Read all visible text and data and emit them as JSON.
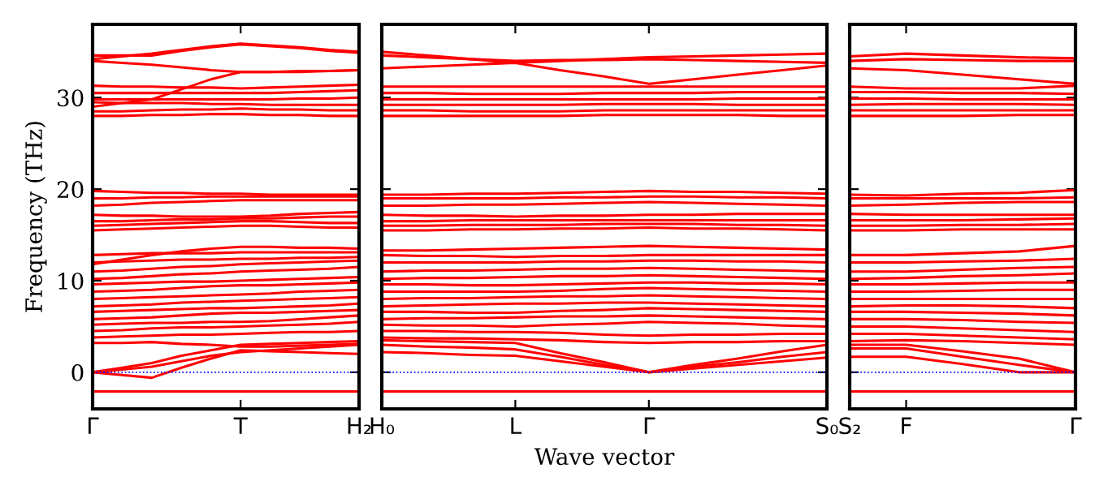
{
  "chart_data": [
    {
      "type": "line",
      "ylabel": "Frequency (THz)",
      "categories": [
        "Γ",
        null,
        null,
        null,
        null,
        "T",
        null,
        null,
        null,
        "H₂"
      ],
      "ylim": [
        -4,
        38
      ],
      "yticks": [
        0,
        10,
        20,
        30
      ],
      "ref_lines": [
        {
          "axis": "y",
          "value": 0,
          "label": null,
          "color": "#0000ff",
          "line_style": "dotted"
        }
      ],
      "grid": false,
      "legend": false,
      "marker": "none",
      "line_style": "solid",
      "series": [
        {
          "color": "#ff0000",
          "values": [
            -2.1,
            -2.1,
            -2.1,
            -2.1,
            -2.1,
            -2.1,
            -2.1,
            -2.1,
            -2.1,
            -2.1
          ]
        },
        {
          "color": "#ff0000",
          "values": [
            0,
            -0.3,
            -0.6,
            0.5,
            1.5,
            2.4,
            2.3,
            2.2,
            2.1,
            2.0
          ]
        },
        {
          "color": "#ff0000",
          "values": [
            0,
            0.3,
            0.6,
            1.2,
            1.8,
            2.2,
            2.4,
            2.6,
            2.8,
            3.0
          ]
        },
        {
          "color": "#ff0000",
          "values": [
            0,
            0.5,
            1.0,
            1.8,
            2.4,
            3.0,
            3.1,
            3.2,
            3.3,
            3.4
          ]
        },
        {
          "color": "#ff0000",
          "values": [
            3.2,
            3.2,
            3.3,
            3.1,
            3.0,
            2.8,
            2.8,
            2.9,
            3.0,
            3.1
          ]
        },
        {
          "color": "#ff0000",
          "values": [
            3.8,
            3.9,
            4.0,
            4.1,
            4.1,
            4.2,
            4.3,
            4.4,
            4.4,
            4.5
          ]
        },
        {
          "color": "#ff0000",
          "values": [
            4.5,
            4.6,
            4.8,
            4.9,
            4.9,
            5.0,
            5.1,
            5.2,
            5.3,
            5.5
          ]
        },
        {
          "color": "#ff0000",
          "values": [
            5.2,
            5.3,
            5.4,
            5.4,
            5.5,
            5.5,
            5.6,
            5.8,
            6.0,
            6.2
          ]
        },
        {
          "color": "#ff0000",
          "values": [
            5.8,
            5.9,
            6.0,
            6.2,
            6.4,
            6.5,
            6.5,
            6.6,
            6.7,
            6.8
          ]
        },
        {
          "color": "#ff0000",
          "values": [
            6.6,
            6.7,
            6.8,
            6.9,
            7.0,
            7.0,
            7.1,
            7.2,
            7.3,
            7.5
          ]
        },
        {
          "color": "#ff0000",
          "values": [
            7.2,
            7.3,
            7.4,
            7.6,
            7.7,
            7.8,
            7.9,
            8.0,
            8.1,
            8.2
          ]
        },
        {
          "color": "#ff0000",
          "values": [
            8.0,
            8.1,
            8.2,
            8.3,
            8.4,
            8.5,
            8.6,
            8.8,
            8.9,
            9.0
          ]
        },
        {
          "color": "#ff0000",
          "values": [
            8.8,
            8.9,
            9.0,
            9.2,
            9.4,
            9.5,
            9.5,
            9.6,
            9.7,
            9.8
          ]
        },
        {
          "color": "#ff0000",
          "values": [
            9.6,
            9.7,
            9.8,
            9.9,
            9.9,
            10.0,
            10.1,
            10.2,
            10.3,
            10.4
          ]
        },
        {
          "color": "#ff0000",
          "values": [
            10.2,
            10.3,
            10.5,
            10.7,
            10.8,
            11.0,
            11.1,
            11.2,
            11.3,
            11.5
          ]
        },
        {
          "color": "#ff0000",
          "values": [
            11.0,
            11.1,
            11.3,
            11.5,
            11.6,
            11.8,
            11.9,
            12.0,
            12.1,
            12.2
          ]
        },
        {
          "color": "#ff0000",
          "values": [
            12.0,
            12.1,
            12.2,
            12.3,
            12.3,
            12.4,
            12.4,
            12.5,
            12.5,
            12.6
          ]
        },
        {
          "color": "#ff0000",
          "values": [
            12.8,
            12.9,
            13.0,
            13.0,
            13.0,
            13.1,
            13.1,
            13.1,
            13.1,
            13.1
          ]
        },
        {
          "color": "#ff0000",
          "values": [
            11.8,
            12.3,
            12.8,
            13.2,
            13.5,
            13.7,
            13.7,
            13.6,
            13.6,
            13.5
          ]
        },
        {
          "color": "#ff0000",
          "values": [
            15.5,
            15.6,
            15.7,
            15.8,
            15.9,
            16.0,
            16.0,
            15.9,
            15.8,
            15.8
          ]
        },
        {
          "color": "#ff0000",
          "values": [
            16.0,
            16.1,
            16.2,
            16.3,
            16.4,
            16.5,
            16.5,
            16.4,
            16.3,
            16.3
          ]
        },
        {
          "color": "#ff0000",
          "values": [
            16.5,
            16.5,
            16.6,
            16.7,
            16.7,
            16.8,
            16.8,
            16.9,
            17.0,
            17.0
          ]
        },
        {
          "color": "#ff0000",
          "values": [
            17.2,
            17.1,
            17.1,
            17.0,
            17.0,
            17.0,
            17.1,
            17.3,
            17.4,
            17.5
          ]
        },
        {
          "color": "#ff0000",
          "values": [
            18.2,
            18.3,
            18.5,
            18.6,
            18.7,
            18.8,
            18.8,
            18.8,
            18.8,
            18.8
          ]
        },
        {
          "color": "#ff0000",
          "values": [
            19.0,
            19.0,
            19.1,
            19.1,
            19.2,
            19.2,
            19.2,
            19.2,
            19.2,
            19.2
          ]
        },
        {
          "color": "#ff0000",
          "values": [
            19.8,
            19.7,
            19.6,
            19.6,
            19.5,
            19.5,
            19.4,
            19.4,
            19.4,
            19.4
          ]
        },
        {
          "color": "#ff0000",
          "values": [
            28.0,
            28.0,
            28.1,
            28.1,
            28.2,
            28.2,
            28.1,
            28.1,
            28.0,
            28.0
          ]
        },
        {
          "color": "#ff0000",
          "values": [
            28.5,
            28.5,
            28.6,
            28.7,
            28.7,
            28.8,
            28.7,
            28.7,
            28.6,
            28.6
          ]
        },
        {
          "color": "#ff0000",
          "values": [
            29.5,
            29.4,
            29.4,
            29.4,
            29.3,
            29.3,
            29.2,
            29.2,
            29.2,
            29.2
          ]
        },
        {
          "color": "#ff0000",
          "values": [
            29.8,
            29.8,
            29.8,
            29.8,
            29.8,
            29.8,
            29.8,
            29.9,
            29.9,
            30.0
          ]
        },
        {
          "color": "#ff0000",
          "values": [
            30.5,
            30.5,
            30.5,
            30.5,
            30.5,
            30.5,
            30.5,
            30.6,
            30.7,
            30.8
          ]
        },
        {
          "color": "#ff0000",
          "values": [
            31.3,
            31.2,
            31.2,
            31.1,
            31.1,
            31.0,
            31.1,
            31.2,
            31.3,
            31.4
          ]
        },
        {
          "color": "#ff0000",
          "values": [
            29.0,
            29.4,
            29.8,
            30.9,
            32.0,
            32.8,
            32.8,
            32.8,
            32.9,
            33.0
          ]
        },
        {
          "color": "#ff0000",
          "values": [
            34.2,
            34.5,
            34.8,
            35.2,
            35.6,
            35.9,
            35.7,
            35.5,
            35.2,
            35.0
          ]
        },
        {
          "color": "#ff0000",
          "values": [
            34.6,
            34.6,
            34.6,
            35.1,
            35.5,
            35.8,
            35.6,
            35.4,
            35.1,
            34.9
          ]
        },
        {
          "color": "#ff0000",
          "values": [
            34.0,
            33.8,
            33.6,
            33.3,
            33.0,
            32.8,
            32.8,
            32.9,
            32.9,
            33.0
          ]
        }
      ]
    },
    {
      "type": "line",
      "xlabel": "Wave vector",
      "categories": [
        "H₀",
        null,
        null,
        "L",
        null,
        null,
        "Γ",
        null,
        null,
        null,
        "S₀"
      ],
      "ylim": [
        -4,
        38
      ],
      "yticks": [
        0,
        10,
        20,
        30
      ],
      "tick_labels": "x",
      "ref_lines": [
        {
          "axis": "y",
          "value": 0,
          "label": null,
          "color": "#0000ff",
          "line_style": "dotted"
        }
      ],
      "grid": false,
      "legend": false,
      "marker": "none",
      "line_style": "solid",
      "series": [
        {
          "color": "#ff0000",
          "values": [
            -2.1,
            -2.1,
            -2.1,
            -2.1,
            -2.1,
            -2.1,
            -2.1,
            -2.1,
            -2.1,
            -2.1,
            -2.1
          ]
        },
        {
          "color": "#ff0000",
          "values": [
            2.2,
            2.1,
            1.9,
            1.8,
            1.2,
            0.6,
            0,
            0.4,
            0.8,
            1.2,
            1.6
          ]
        },
        {
          "color": "#ff0000",
          "values": [
            3.0,
            2.8,
            2.7,
            2.5,
            1.7,
            0.8,
            0,
            0.6,
            1.1,
            1.7,
            2.2
          ]
        },
        {
          "color": "#ff0000",
          "values": [
            3.5,
            3.4,
            3.3,
            3.2,
            2.1,
            1.1,
            0,
            0.8,
            1.5,
            2.3,
            3.0
          ]
        },
        {
          "color": "#ff0000",
          "values": [
            3.8,
            3.7,
            3.7,
            3.6,
            3.5,
            3.3,
            3.2,
            3.3,
            3.3,
            3.4,
            3.4
          ]
        },
        {
          "color": "#ff0000",
          "values": [
            4.5,
            4.5,
            4.4,
            4.4,
            4.3,
            4.1,
            4.0,
            4.1,
            4.1,
            4.2,
            4.2
          ]
        },
        {
          "color": "#ff0000",
          "values": [
            5.2,
            5.1,
            5.1,
            5.0,
            5.2,
            5.3,
            5.5,
            5.4,
            5.3,
            5.1,
            5.0
          ]
        },
        {
          "color": "#ff0000",
          "values": [
            5.8,
            5.9,
            5.9,
            6.0,
            6.1,
            6.1,
            6.2,
            6.1,
            6.0,
            5.9,
            5.8
          ]
        },
        {
          "color": "#ff0000",
          "values": [
            6.6,
            6.6,
            6.5,
            6.5,
            6.7,
            6.8,
            7.0,
            6.9,
            6.8,
            6.7,
            6.6
          ]
        },
        {
          "color": "#ff0000",
          "values": [
            7.2,
            7.3,
            7.4,
            7.5,
            7.5,
            7.6,
            7.6,
            7.5,
            7.4,
            7.3,
            7.2
          ]
        },
        {
          "color": "#ff0000",
          "values": [
            8.0,
            8.1,
            8.1,
            8.2,
            8.3,
            8.3,
            8.4,
            8.3,
            8.2,
            8.1,
            8.0
          ]
        },
        {
          "color": "#ff0000",
          "values": [
            8.8,
            8.8,
            8.8,
            8.8,
            8.9,
            9.1,
            9.2,
            9.1,
            9.0,
            8.9,
            8.8
          ]
        },
        {
          "color": "#ff0000",
          "values": [
            9.6,
            9.6,
            9.5,
            9.5,
            9.6,
            9.7,
            9.8,
            9.8,
            9.7,
            9.7,
            9.6
          ]
        },
        {
          "color": "#ff0000",
          "values": [
            10.2,
            10.3,
            10.3,
            10.4,
            10.5,
            10.5,
            10.6,
            10.5,
            10.4,
            10.3,
            10.2
          ]
        },
        {
          "color": "#ff0000",
          "values": [
            11.0,
            11.1,
            11.1,
            11.2,
            11.3,
            11.3,
            11.4,
            11.3,
            11.2,
            11.1,
            11.0
          ]
        },
        {
          "color": "#ff0000",
          "values": [
            12.0,
            12.0,
            12.0,
            12.0,
            12.1,
            12.1,
            12.2,
            12.2,
            12.1,
            12.1,
            12.0
          ]
        },
        {
          "color": "#ff0000",
          "values": [
            12.8,
            12.7,
            12.7,
            12.6,
            12.7,
            12.7,
            12.8,
            12.8,
            12.8,
            12.8,
            12.8
          ]
        },
        {
          "color": "#ff0000",
          "values": [
            13.3,
            13.3,
            13.4,
            13.5,
            13.6,
            13.7,
            13.8,
            13.7,
            13.6,
            13.5,
            13.4
          ]
        },
        {
          "color": "#ff0000",
          "values": [
            15.5,
            15.5,
            15.6,
            15.6,
            15.7,
            15.7,
            15.8,
            15.7,
            15.7,
            15.6,
            15.5
          ]
        },
        {
          "color": "#ff0000",
          "values": [
            16.0,
            16.0,
            16.1,
            16.1,
            16.1,
            16.2,
            16.2,
            16.2,
            16.1,
            16.1,
            16.0
          ]
        },
        {
          "color": "#ff0000",
          "values": [
            16.5,
            16.5,
            16.6,
            16.6,
            16.6,
            16.6,
            16.6,
            16.6,
            16.6,
            16.6,
            16.6
          ]
        },
        {
          "color": "#ff0000",
          "values": [
            17.2,
            17.1,
            17.1,
            17.0,
            17.1,
            17.1,
            17.2,
            17.2,
            17.3,
            17.3,
            17.3
          ]
        },
        {
          "color": "#ff0000",
          "values": [
            18.2,
            18.2,
            18.3,
            18.3,
            18.4,
            18.5,
            18.6,
            18.5,
            18.4,
            18.3,
            18.2
          ]
        },
        {
          "color": "#ff0000",
          "values": [
            19.0,
            19.0,
            19.0,
            19.0,
            19.1,
            19.1,
            19.2,
            19.2,
            19.1,
            19.1,
            19.0
          ]
        },
        {
          "color": "#ff0000",
          "values": [
            19.4,
            19.4,
            19.5,
            19.5,
            19.6,
            19.7,
            19.8,
            19.7,
            19.7,
            19.6,
            19.5
          ]
        },
        {
          "color": "#ff0000",
          "values": [
            28.0,
            28.0,
            28.0,
            28.0,
            28.0,
            28.1,
            28.1,
            28.1,
            28.1,
            28.0,
            28.0
          ]
        },
        {
          "color": "#ff0000",
          "values": [
            28.6,
            28.6,
            28.5,
            28.5,
            28.5,
            28.6,
            28.6,
            28.6,
            28.6,
            28.6,
            28.6
          ]
        },
        {
          "color": "#ff0000",
          "values": [
            29.2,
            29.2,
            29.2,
            29.2,
            29.2,
            29.3,
            29.3,
            29.3,
            29.2,
            29.2,
            29.2
          ]
        },
        {
          "color": "#ff0000",
          "values": [
            29.8,
            29.8,
            29.8,
            29.8,
            29.8,
            29.8,
            29.8,
            29.8,
            29.9,
            29.9,
            29.9
          ]
        },
        {
          "color": "#ff0000",
          "values": [
            30.5,
            30.5,
            30.4,
            30.4,
            30.4,
            30.5,
            30.5,
            30.5,
            30.6,
            30.6,
            30.6
          ]
        },
        {
          "color": "#ff0000",
          "values": [
            31.2,
            31.2,
            31.2,
            31.2,
            31.2,
            31.2,
            31.2,
            31.2,
            31.2,
            31.2,
            31.2
          ]
        },
        {
          "color": "#ff0000",
          "values": [
            33.2,
            33.4,
            33.6,
            33.8,
            33.0,
            32.3,
            31.5,
            32.0,
            32.5,
            33.0,
            33.5
          ]
        },
        {
          "color": "#ff0000",
          "values": [
            35.0,
            34.6,
            34.2,
            33.8,
            34.0,
            34.2,
            34.4,
            34.5,
            34.6,
            34.7,
            34.8
          ]
        },
        {
          "color": "#ff0000",
          "values": [
            34.6,
            34.4,
            34.2,
            34.0,
            34.1,
            34.1,
            34.2,
            34.1,
            34.0,
            33.9,
            33.8
          ]
        }
      ]
    },
    {
      "type": "line",
      "categories": [
        "S₂",
        "F",
        null,
        null,
        "Γ"
      ],
      "ylim": [
        -4,
        38
      ],
      "yticks": [
        0,
        10,
        20,
        30
      ],
      "tick_labels": "x",
      "ref_lines": [
        {
          "axis": "y",
          "value": 0,
          "label": null,
          "color": "#0000ff",
          "line_style": "dotted"
        }
      ],
      "grid": false,
      "legend": false,
      "marker": "none",
      "line_style": "solid",
      "series": [
        {
          "color": "#ff0000",
          "values": [
            -2.1,
            -2.1,
            -2.1,
            -2.1,
            -2.1
          ]
        },
        {
          "color": "#ff0000",
          "values": [
            1.7,
            1.7,
            0.9,
            0,
            0
          ]
        },
        {
          "color": "#ff0000",
          "values": [
            2.6,
            2.6,
            1.7,
            0.8,
            0
          ]
        },
        {
          "color": "#ff0000",
          "values": [
            3.0,
            3.0,
            2.3,
            1.5,
            0
          ]
        },
        {
          "color": "#ff0000",
          "values": [
            3.4,
            3.5,
            3.4,
            3.2,
            3.0
          ]
        },
        {
          "color": "#ff0000",
          "values": [
            4.2,
            4.2,
            4.0,
            3.8,
            3.6
          ]
        },
        {
          "color": "#ff0000",
          "values": [
            5.0,
            5.0,
            4.8,
            4.6,
            4.4
          ]
        },
        {
          "color": "#ff0000",
          "values": [
            5.8,
            5.8,
            5.7,
            5.5,
            5.4
          ]
        },
        {
          "color": "#ff0000",
          "values": [
            6.6,
            6.6,
            6.5,
            6.4,
            6.2
          ]
        },
        {
          "color": "#ff0000",
          "values": [
            7.2,
            7.3,
            7.3,
            7.2,
            7.0
          ]
        },
        {
          "color": "#ff0000",
          "values": [
            8.0,
            8.0,
            8.0,
            8.0,
            8.0
          ]
        },
        {
          "color": "#ff0000",
          "values": [
            8.8,
            8.8,
            8.9,
            9.0,
            9.0
          ]
        },
        {
          "color": "#ff0000",
          "values": [
            9.6,
            9.6,
            9.7,
            9.8,
            9.8
          ]
        },
        {
          "color": "#ff0000",
          "values": [
            10.2,
            10.3,
            10.5,
            10.6,
            10.8
          ]
        },
        {
          "color": "#ff0000",
          "values": [
            11.0,
            11.0,
            11.2,
            11.4,
            11.5
          ]
        },
        {
          "color": "#ff0000",
          "values": [
            12.0,
            12.0,
            12.1,
            12.2,
            12.4
          ]
        },
        {
          "color": "#ff0000",
          "values": [
            12.8,
            12.8,
            13.0,
            13.2,
            13.8
          ]
        },
        {
          "color": "#ff0000",
          "values": [
            15.5,
            15.5,
            15.6,
            15.6,
            15.6
          ]
        },
        {
          "color": "#ff0000",
          "values": [
            16.0,
            16.0,
            16.1,
            16.1,
            16.2
          ]
        },
        {
          "color": "#ff0000",
          "values": [
            16.6,
            16.6,
            16.6,
            16.7,
            16.8
          ]
        },
        {
          "color": "#ff0000",
          "values": [
            17.3,
            17.2,
            17.2,
            17.2,
            17.2
          ]
        },
        {
          "color": "#ff0000",
          "values": [
            18.2,
            18.3,
            18.5,
            18.6,
            18.6
          ]
        },
        {
          "color": "#ff0000",
          "values": [
            19.0,
            19.0,
            19.0,
            19.0,
            19.1
          ]
        },
        {
          "color": "#ff0000",
          "values": [
            19.4,
            19.3,
            19.5,
            19.6,
            19.9
          ]
        },
        {
          "color": "#ff0000",
          "values": [
            28.0,
            28.0,
            28.0,
            28.1,
            28.1
          ]
        },
        {
          "color": "#ff0000",
          "values": [
            28.6,
            28.6,
            28.6,
            28.6,
            28.6
          ]
        },
        {
          "color": "#ff0000",
          "values": [
            29.2,
            29.3,
            29.3,
            29.3,
            29.2
          ]
        },
        {
          "color": "#ff0000",
          "values": [
            29.9,
            29.9,
            29.8,
            29.8,
            29.8
          ]
        },
        {
          "color": "#ff0000",
          "values": [
            30.6,
            30.6,
            30.5,
            30.5,
            30.4
          ]
        },
        {
          "color": "#ff0000",
          "values": [
            31.2,
            31.0,
            31.0,
            31.0,
            31.3
          ]
        },
        {
          "color": "#ff0000",
          "values": [
            33.2,
            33.0,
            32.5,
            32.0,
            31.5
          ]
        },
        {
          "color": "#ff0000",
          "values": [
            34.0,
            34.2,
            34.1,
            34.0,
            34.0
          ]
        },
        {
          "color": "#ff0000",
          "values": [
            34.5,
            34.8,
            34.6,
            34.4,
            34.3
          ]
        }
      ]
    }
  ]
}
